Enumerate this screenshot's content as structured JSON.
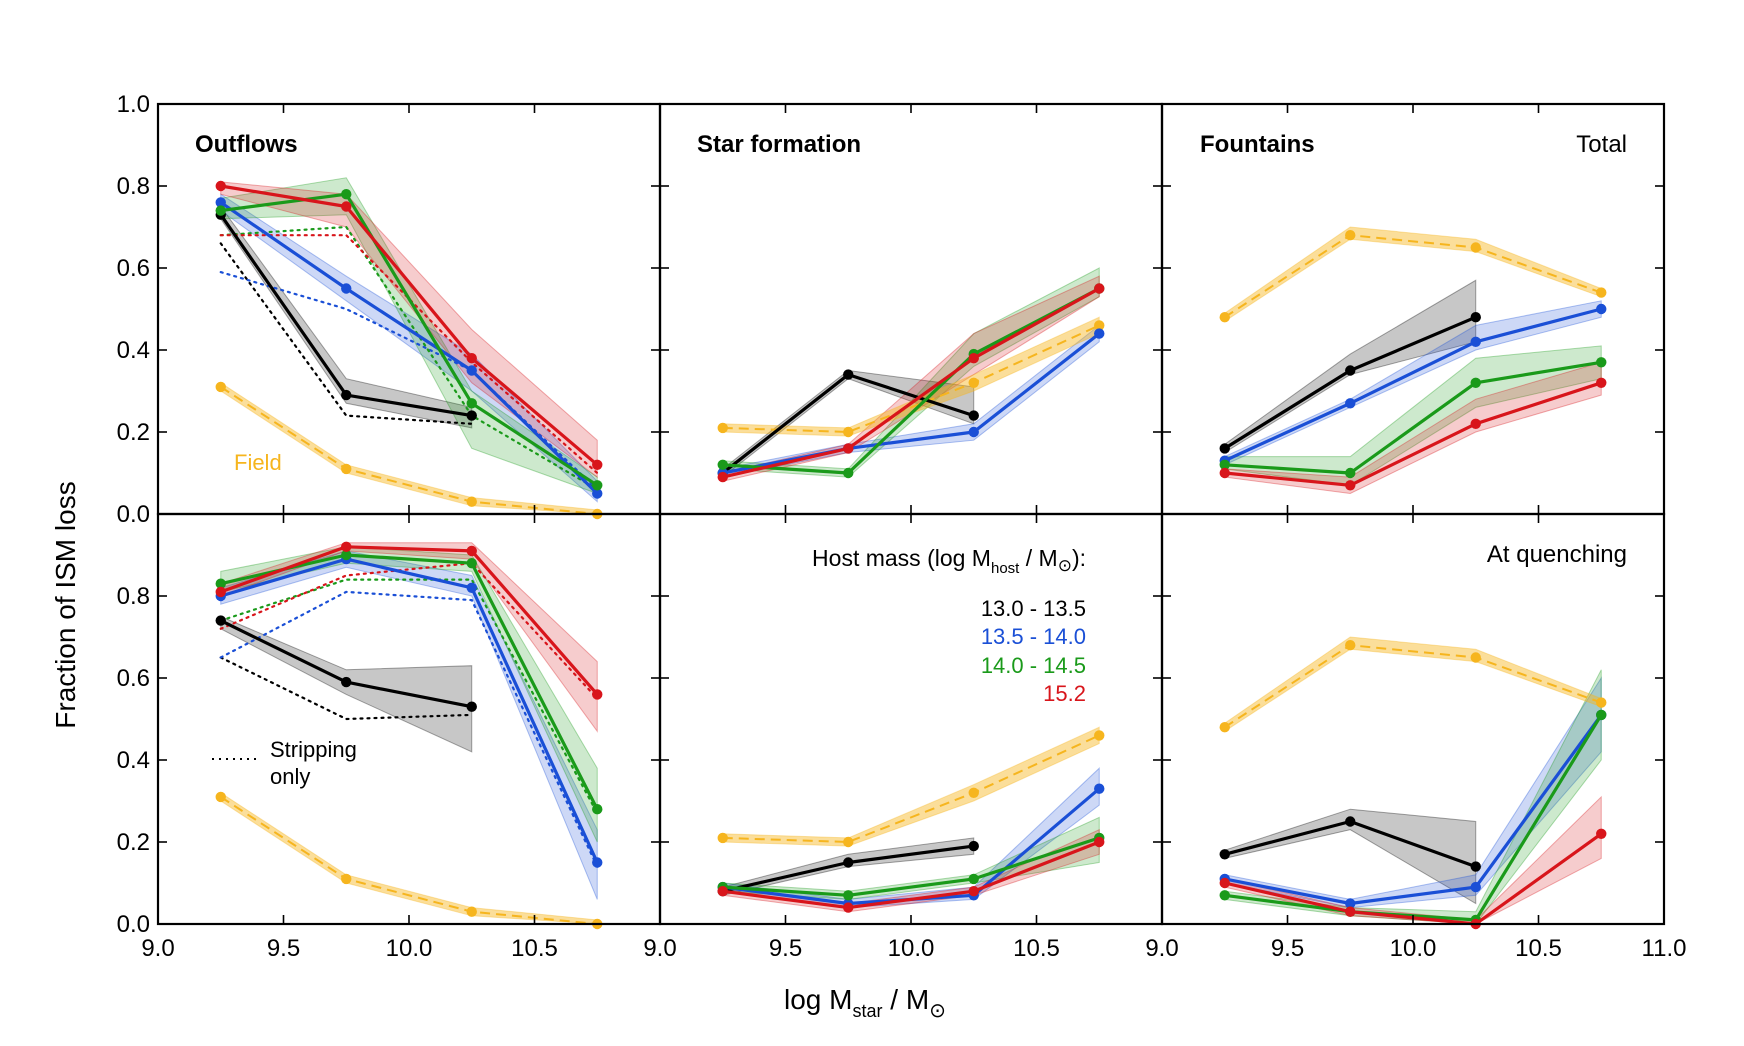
{
  "colors": {
    "black": "#000000",
    "blue": "#1a4fd6",
    "green": "#1a9a1a",
    "red": "#d8151b",
    "orange": "#f6b51e"
  },
  "axes": {
    "xlabel_main": "log M",
    "xlabel_sub": "star",
    "xlabel_tail": " / M",
    "xlabel_sun": "⊙",
    "ylabel": "Fraction of ISM loss",
    "x_ticks": [
      "9.0",
      "9.5",
      "10.0",
      "10.5"
    ],
    "x_ticks_last": [
      "9.0",
      "9.5",
      "10.0",
      "10.5",
      "11.0"
    ],
    "y_ticks": [
      "0.0",
      "0.2",
      "0.4",
      "0.6",
      "0.8"
    ],
    "y_ticks_top": [
      "0.0",
      "0.2",
      "0.4",
      "0.6",
      "0.8",
      "1.0"
    ]
  },
  "panel_labels": {
    "outflows": "Outflows",
    "star_formation": "Star formation",
    "fountains": "Fountains",
    "total": "Total",
    "at_quenching": "At quenching",
    "field": "Field",
    "stripping_line1": "Stripping",
    "stripping_line2": "only"
  },
  "legend": {
    "title_a": "Host mass (log M",
    "title_sub": "host",
    "title_b": " / M",
    "title_sun": "⊙",
    "title_c": "):",
    "entries": [
      {
        "label": "13.0 - 13.5",
        "color": "#000000"
      },
      {
        "label": "13.5 - 14.0",
        "color": "#1a4fd6"
      },
      {
        "label": "14.0 - 14.5",
        "color": "#1a9a1a"
      },
      {
        "label": "15.2",
        "color": "#d8151b"
      }
    ]
  },
  "chart_data": [
    {
      "type": "line",
      "panel": "Outflows (Total)",
      "row": 0,
      "col": 0,
      "xlim": [
        9.0,
        11.0
      ],
      "ylim": [
        0.0,
        1.0
      ],
      "x": [
        9.25,
        9.75,
        10.25,
        10.75
      ],
      "series": [
        {
          "name": "13.0 - 13.5",
          "color": "black",
          "values": [
            0.73,
            0.29,
            0.24,
            null
          ],
          "lo": [
            0.72,
            0.27,
            0.21,
            null
          ],
          "hi": [
            0.75,
            0.33,
            0.26,
            null
          ]
        },
        {
          "name": "13.5 - 14.0",
          "color": "blue",
          "values": [
            0.76,
            0.55,
            0.35,
            0.05
          ],
          "lo": [
            0.74,
            0.52,
            0.3,
            0.03
          ],
          "hi": [
            0.78,
            0.58,
            0.39,
            0.08
          ]
        },
        {
          "name": "14.0 - 14.5",
          "color": "green",
          "values": [
            0.74,
            0.78,
            0.27,
            0.07
          ],
          "lo": [
            0.72,
            0.73,
            0.16,
            0.05
          ],
          "hi": [
            0.77,
            0.82,
            0.3,
            0.09
          ]
        },
        {
          "name": "15.2",
          "color": "red",
          "values": [
            0.8,
            0.75,
            0.38,
            0.12
          ],
          "lo": [
            0.78,
            0.7,
            0.32,
            0.09
          ],
          "hi": [
            0.81,
            0.78,
            0.45,
            0.18
          ]
        },
        {
          "name": "Field",
          "color": "orange",
          "values": [
            0.31,
            0.11,
            0.03,
            0.0
          ],
          "lo": [
            0.3,
            0.1,
            0.02,
            0.0
          ],
          "hi": [
            0.32,
            0.12,
            0.04,
            0.01
          ]
        }
      ],
      "stripping_only": [
        {
          "name": "13.0 - 13.5",
          "color": "black",
          "values": [
            0.66,
            0.24,
            0.22,
            null
          ]
        },
        {
          "name": "13.5 - 14.0",
          "color": "blue",
          "values": [
            0.59,
            0.5,
            0.35,
            0.06
          ]
        },
        {
          "name": "14.0 - 14.5",
          "color": "green",
          "values": [
            0.68,
            0.7,
            0.24,
            0.06
          ]
        },
        {
          "name": "15.2",
          "color": "red",
          "values": [
            0.68,
            0.68,
            0.37,
            0.1
          ]
        }
      ]
    },
    {
      "type": "line",
      "panel": "Star formation (Total)",
      "row": 0,
      "col": 1,
      "xlim": [
        9.0,
        11.0
      ],
      "ylim": [
        0.0,
        1.0
      ],
      "x": [
        9.25,
        9.75,
        10.25,
        10.75
      ],
      "series": [
        {
          "name": "13.0 - 13.5",
          "color": "black",
          "values": [
            0.1,
            0.34,
            0.24,
            null
          ],
          "lo": [
            0.09,
            0.33,
            0.22,
            null
          ],
          "hi": [
            0.11,
            0.35,
            0.31,
            null
          ]
        },
        {
          "name": "13.5 - 14.0",
          "color": "blue",
          "values": [
            0.1,
            0.16,
            0.2,
            0.44
          ],
          "lo": [
            0.09,
            0.15,
            0.18,
            0.42
          ],
          "hi": [
            0.11,
            0.17,
            0.22,
            0.46
          ]
        },
        {
          "name": "14.0 - 14.5",
          "color": "green",
          "values": [
            0.12,
            0.1,
            0.39,
            0.55
          ],
          "lo": [
            0.11,
            0.09,
            0.36,
            0.53
          ],
          "hi": [
            0.13,
            0.11,
            0.44,
            0.6
          ]
        },
        {
          "name": "15.2",
          "color": "red",
          "values": [
            0.09,
            0.16,
            0.38,
            0.55
          ],
          "lo": [
            0.08,
            0.15,
            0.34,
            0.53
          ],
          "hi": [
            0.1,
            0.17,
            0.44,
            0.58
          ]
        },
        {
          "name": "Field",
          "color": "orange",
          "values": [
            0.21,
            0.2,
            0.32,
            0.46
          ],
          "lo": [
            0.2,
            0.19,
            0.3,
            0.44
          ],
          "hi": [
            0.22,
            0.21,
            0.34,
            0.48
          ]
        }
      ]
    },
    {
      "type": "line",
      "panel": "Fountains (Total)",
      "row": 0,
      "col": 2,
      "xlim": [
        9.0,
        11.0
      ],
      "ylim": [
        0.0,
        1.0
      ],
      "x": [
        9.25,
        9.75,
        10.25,
        10.75
      ],
      "series": [
        {
          "name": "13.0 - 13.5",
          "color": "black",
          "values": [
            0.16,
            0.35,
            0.48,
            null
          ],
          "lo": [
            0.15,
            0.34,
            0.42,
            null
          ],
          "hi": [
            0.17,
            0.39,
            0.57,
            null
          ]
        },
        {
          "name": "13.5 - 14.0",
          "color": "blue",
          "values": [
            0.13,
            0.27,
            0.42,
            0.5
          ],
          "lo": [
            0.12,
            0.26,
            0.4,
            0.48
          ],
          "hi": [
            0.14,
            0.28,
            0.46,
            0.52
          ]
        },
        {
          "name": "14.0 - 14.5",
          "color": "green",
          "values": [
            0.12,
            0.1,
            0.32,
            0.37
          ],
          "lo": [
            0.11,
            0.07,
            0.26,
            0.33
          ],
          "hi": [
            0.14,
            0.14,
            0.38,
            0.41
          ]
        },
        {
          "name": "15.2",
          "color": "red",
          "values": [
            0.1,
            0.07,
            0.22,
            0.32
          ],
          "lo": [
            0.09,
            0.05,
            0.2,
            0.29
          ],
          "hi": [
            0.11,
            0.09,
            0.28,
            0.37
          ]
        },
        {
          "name": "Field",
          "color": "orange",
          "values": [
            0.48,
            0.68,
            0.65,
            0.54
          ],
          "lo": [
            0.47,
            0.67,
            0.64,
            0.53
          ],
          "hi": [
            0.49,
            0.7,
            0.67,
            0.55
          ]
        }
      ]
    },
    {
      "type": "line",
      "panel": "Outflows (At quenching)",
      "row": 1,
      "col": 0,
      "xlim": [
        9.0,
        11.0
      ],
      "ylim": [
        0.0,
        1.0
      ],
      "x": [
        9.25,
        9.75,
        10.25,
        10.75
      ],
      "series": [
        {
          "name": "13.0 - 13.5",
          "color": "black",
          "values": [
            0.74,
            0.59,
            0.53,
            null
          ],
          "lo": [
            0.72,
            0.56,
            0.42,
            null
          ],
          "hi": [
            0.75,
            0.62,
            0.63,
            null
          ]
        },
        {
          "name": "13.5 - 14.0",
          "color": "blue",
          "values": [
            0.8,
            0.89,
            0.82,
            0.15
          ],
          "lo": [
            0.78,
            0.87,
            0.8,
            0.06
          ],
          "hi": [
            0.82,
            0.91,
            0.85,
            0.23
          ]
        },
        {
          "name": "14.0 - 14.5",
          "color": "green",
          "values": [
            0.83,
            0.9,
            0.88,
            0.28
          ],
          "lo": [
            0.81,
            0.88,
            0.86,
            0.2
          ],
          "hi": [
            0.86,
            0.92,
            0.9,
            0.38
          ]
        },
        {
          "name": "15.2",
          "color": "red",
          "values": [
            0.81,
            0.92,
            0.91,
            0.56
          ],
          "lo": [
            0.8,
            0.91,
            0.89,
            0.47
          ],
          "hi": [
            0.83,
            0.93,
            0.93,
            0.64
          ]
        },
        {
          "name": "Field",
          "color": "orange",
          "values": [
            0.31,
            0.11,
            0.03,
            0.0
          ],
          "lo": [
            0.3,
            0.1,
            0.02,
            0.0
          ],
          "hi": [
            0.32,
            0.12,
            0.04,
            0.01
          ]
        }
      ],
      "stripping_only": [
        {
          "name": "13.0 - 13.5",
          "color": "black",
          "values": [
            0.65,
            0.5,
            0.51,
            null
          ]
        },
        {
          "name": "13.5 - 14.0",
          "color": "blue",
          "values": [
            0.65,
            0.81,
            0.79,
            0.14
          ]
        },
        {
          "name": "14.0 - 14.5",
          "color": "green",
          "values": [
            0.74,
            0.84,
            0.84,
            0.27
          ]
        },
        {
          "name": "15.2",
          "color": "red",
          "values": [
            0.72,
            0.85,
            0.88,
            0.55
          ]
        }
      ]
    },
    {
      "type": "line",
      "panel": "Star formation (At quenching)",
      "row": 1,
      "col": 1,
      "xlim": [
        9.0,
        11.0
      ],
      "ylim": [
        0.0,
        1.0
      ],
      "x": [
        9.25,
        9.75,
        10.25,
        10.75
      ],
      "series": [
        {
          "name": "13.0 - 13.5",
          "color": "black",
          "values": [
            0.08,
            0.15,
            0.19,
            null
          ],
          "lo": [
            0.07,
            0.14,
            0.17,
            null
          ],
          "hi": [
            0.09,
            0.17,
            0.21,
            null
          ]
        },
        {
          "name": "13.5 - 14.0",
          "color": "blue",
          "values": [
            0.09,
            0.05,
            0.07,
            0.33
          ],
          "lo": [
            0.08,
            0.04,
            0.06,
            0.29
          ],
          "hi": [
            0.1,
            0.06,
            0.09,
            0.38
          ]
        },
        {
          "name": "14.0 - 14.5",
          "color": "green",
          "values": [
            0.09,
            0.07,
            0.11,
            0.21
          ],
          "lo": [
            0.08,
            0.06,
            0.1,
            0.15
          ],
          "hi": [
            0.1,
            0.08,
            0.12,
            0.26
          ]
        },
        {
          "name": "15.2",
          "color": "red",
          "values": [
            0.08,
            0.04,
            0.08,
            0.2
          ],
          "lo": [
            0.07,
            0.03,
            0.07,
            0.17
          ],
          "hi": [
            0.09,
            0.05,
            0.09,
            0.23
          ]
        },
        {
          "name": "Field",
          "color": "orange",
          "values": [
            0.21,
            0.2,
            0.32,
            0.46
          ],
          "lo": [
            0.2,
            0.19,
            0.3,
            0.44
          ],
          "hi": [
            0.22,
            0.21,
            0.34,
            0.48
          ]
        }
      ]
    },
    {
      "type": "line",
      "panel": "Fountains (At quenching)",
      "row": 1,
      "col": 2,
      "xlim": [
        9.0,
        11.0
      ],
      "ylim": [
        0.0,
        1.0
      ],
      "x": [
        9.25,
        9.75,
        10.25,
        10.75
      ],
      "series": [
        {
          "name": "13.0 - 13.5",
          "color": "black",
          "values": [
            0.17,
            0.25,
            0.14,
            null
          ],
          "lo": [
            0.16,
            0.23,
            0.05,
            null
          ],
          "hi": [
            0.18,
            0.28,
            0.25,
            null
          ]
        },
        {
          "name": "13.5 - 14.0",
          "color": "blue",
          "values": [
            0.11,
            0.05,
            0.09,
            0.51
          ],
          "lo": [
            0.1,
            0.04,
            0.07,
            0.42
          ],
          "hi": [
            0.12,
            0.06,
            0.12,
            0.6
          ]
        },
        {
          "name": "14.0 - 14.5",
          "color": "green",
          "values": [
            0.07,
            0.03,
            0.01,
            0.51
          ],
          "lo": [
            0.06,
            0.02,
            0.0,
            0.4
          ],
          "hi": [
            0.08,
            0.04,
            0.03,
            0.62
          ]
        },
        {
          "name": "15.2",
          "color": "red",
          "values": [
            0.1,
            0.03,
            0.0,
            0.22
          ],
          "lo": [
            0.09,
            0.02,
            0.0,
            0.16
          ],
          "hi": [
            0.11,
            0.04,
            0.01,
            0.31
          ]
        },
        {
          "name": "Field",
          "color": "orange",
          "values": [
            0.48,
            0.68,
            0.65,
            0.54
          ],
          "lo": [
            0.47,
            0.67,
            0.64,
            0.53
          ],
          "hi": [
            0.49,
            0.7,
            0.67,
            0.55
          ]
        }
      ]
    }
  ]
}
